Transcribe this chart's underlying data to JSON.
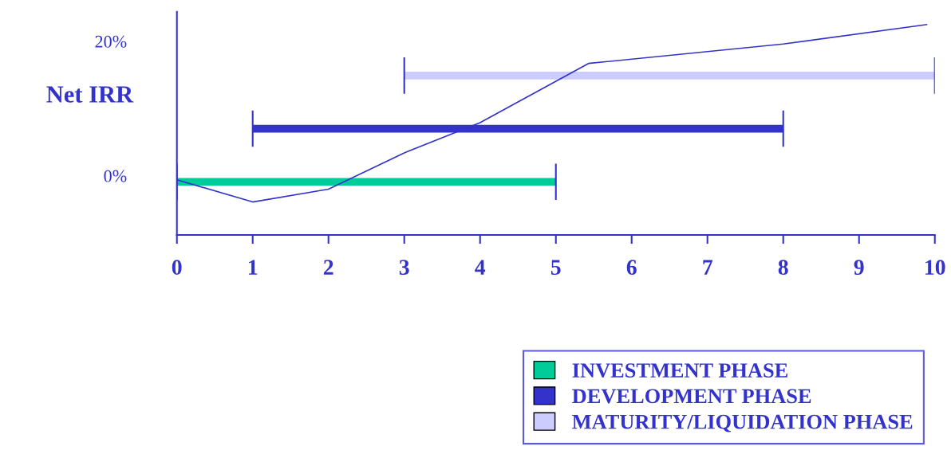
{
  "chart_data": {
    "type": "line",
    "ylabel": "Net IRR",
    "xlim": [
      0,
      10
    ],
    "xticks": [
      0,
      1,
      2,
      3,
      4,
      5,
      6,
      7,
      8,
      9,
      10
    ],
    "ylim": [
      -8.8,
      24.4
    ],
    "yticks": [
      {
        "value": 0,
        "label": "0%"
      },
      {
        "value": 20,
        "label": "20%"
      }
    ],
    "grid": false,
    "legend": "bottom right",
    "marker": "none",
    "line_style": "solid",
    "series": [
      {
        "color": "#3333cc",
        "x": [
          0,
          1,
          2,
          3,
          4,
          5.43,
          8,
          9.9
        ],
        "values": [
          -0.6,
          -3.9,
          -2.0,
          3.4,
          7.9,
          16.7,
          19.6,
          22.5
        ]
      },
      {
        "name": "INVESTMENT PHASE",
        "color": "#00cc99",
        "x": [
          0,
          5
        ],
        "values": [
          -0.9,
          -0.9
        ],
        "errors": [
          2.7,
          2.7
        ]
      },
      {
        "name": "DEVELOPMENT PHASE",
        "color": "#3333cc",
        "x": [
          1,
          8
        ],
        "values": [
          7.0,
          7.0
        ],
        "errors": [
          2.7,
          2.7
        ]
      },
      {
        "name": "MATURITY/LIQUIDATION PHASE",
        "color": "#ccccff",
        "x": [
          3,
          10
        ],
        "values": [
          14.9,
          14.9
        ],
        "errors": [
          2.7,
          2.7
        ]
      }
    ]
  }
}
